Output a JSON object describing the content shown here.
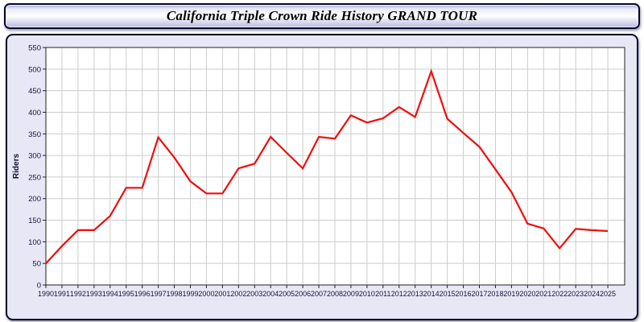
{
  "title": "California Triple Crown Ride History GRAND TOUR",
  "colors": {
    "panel_background": "#e7e7f6",
    "panel_border": "#06062e",
    "plot_background": "#ffffff",
    "grid_line": "#cccccc",
    "plot_frame": "#222222",
    "series_line": "#f20d0d",
    "tick_text": "#16163a"
  },
  "chart_data": {
    "type": "line",
    "title": "California Triple Crown Ride History GRAND TOUR",
    "xlabel": "",
    "ylabel": "Riders",
    "ylim": [
      0,
      550
    ],
    "ytick_step": 50,
    "grid": true,
    "legend_position": "none",
    "x": [
      1990,
      1991,
      1992,
      1993,
      1994,
      1995,
      1996,
      1997,
      1998,
      1999,
      2000,
      2001,
      2002,
      2003,
      2004,
      2005,
      2006,
      2007,
      2008,
      2009,
      2010,
      2011,
      2012,
      2013,
      2014,
      2015,
      2016,
      2017,
      2018,
      2019,
      2020,
      2021,
      2022,
      2023,
      2024,
      2025
    ],
    "series": [
      {
        "name": "Riders",
        "color": "#f20d0d",
        "values": [
          50,
          90,
          127,
          127,
          160,
          225,
          225,
          342,
          295,
          240,
          212,
          212,
          270,
          281,
          343,
          306,
          270,
          343,
          339,
          393,
          376,
          386,
          412,
          389,
          495,
          385,
          352,
          320,
          268,
          215,
          142,
          131,
          85,
          130,
          127,
          125
        ]
      }
    ]
  }
}
